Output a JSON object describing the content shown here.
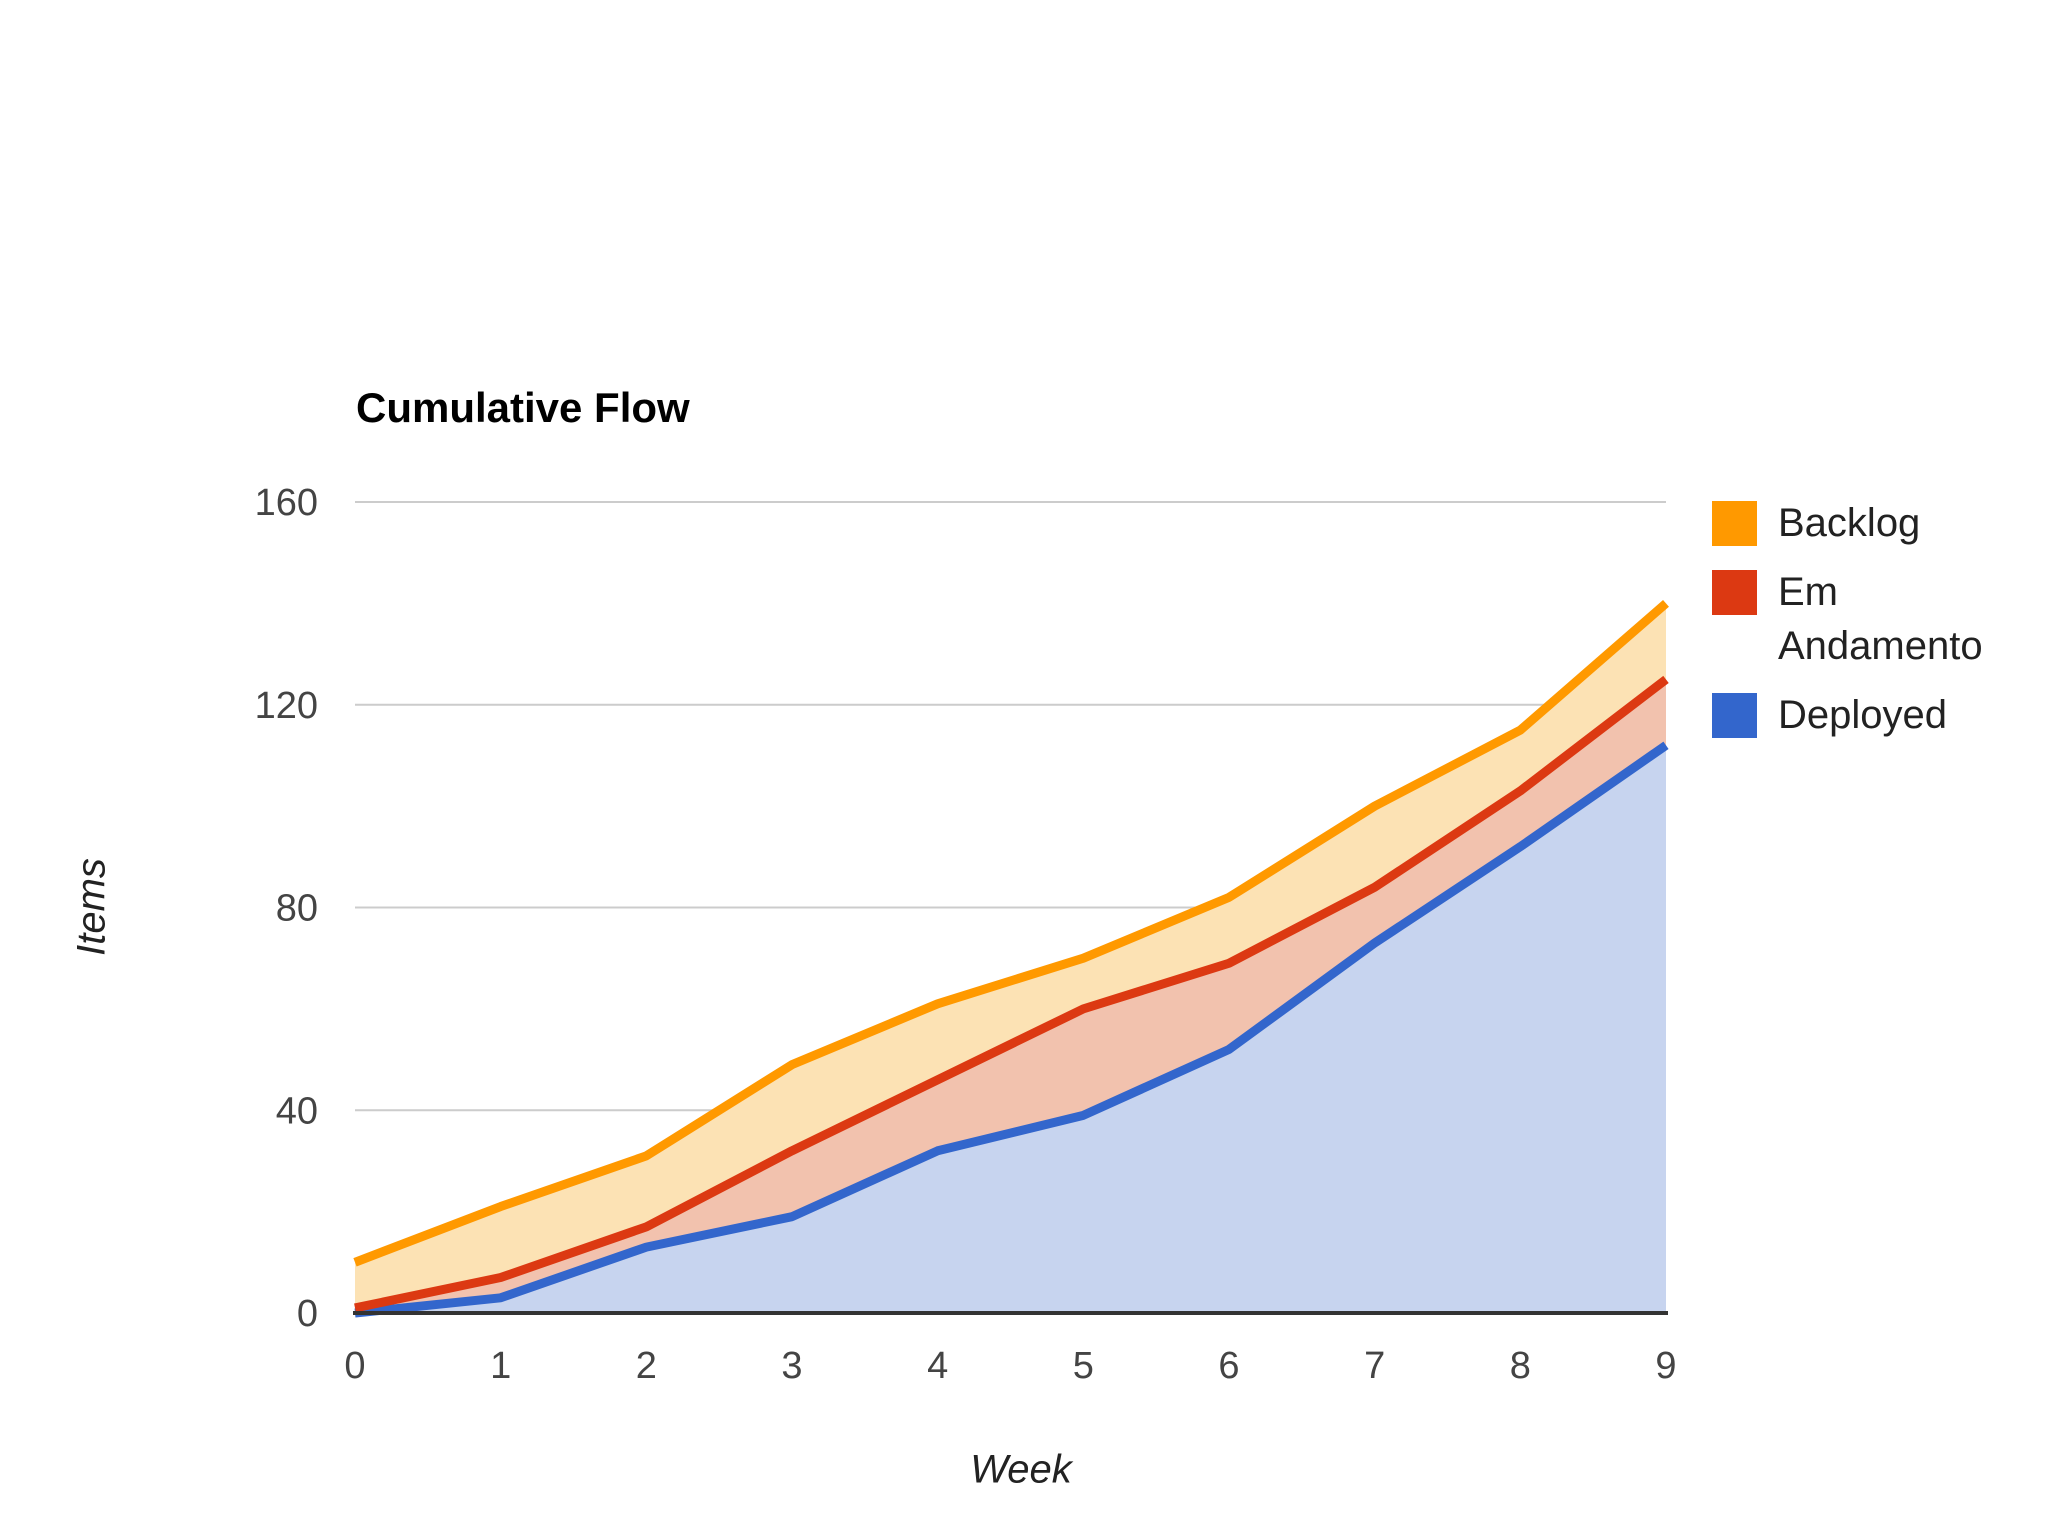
{
  "chart_data": {
    "type": "area",
    "title": "Cumulative Flow",
    "xlabel": "Week",
    "ylabel": "Items",
    "x": [
      0,
      1,
      2,
      3,
      4,
      5,
      6,
      7,
      8,
      9
    ],
    "xticks": [
      "0",
      "1",
      "2",
      "3",
      "4",
      "5",
      "6",
      "7",
      "8",
      "9"
    ],
    "yticks": [
      "0",
      "40",
      "80",
      "120",
      "160"
    ],
    "ylim": [
      0,
      160
    ],
    "grid": "horizontal-only",
    "legend_position": "right",
    "series": [
      {
        "name": "Backlog",
        "color": "#FF9900",
        "fill": "#FCE2B4",
        "values": [
          10,
          21,
          31,
          49,
          61,
          70,
          82,
          100,
          115,
          140
        ]
      },
      {
        "name": "Em Andamento",
        "color": "#DC3912",
        "fill": "#F2C2AE",
        "values": [
          1,
          7,
          17,
          32,
          46,
          60,
          69,
          84,
          103,
          125
        ]
      },
      {
        "name": "Deployed",
        "color": "#3366CC",
        "fill": "#C7D4EF",
        "values": [
          0,
          3,
          13,
          19,
          32,
          39,
          52,
          73,
          92,
          112
        ]
      }
    ],
    "colors": {
      "gridline": "#CCCCCC",
      "axis_line": "#333333",
      "tick_text": "#444444",
      "title_text": "#000000",
      "axis_title_text": "#222222",
      "legend_text": "#222222"
    }
  }
}
